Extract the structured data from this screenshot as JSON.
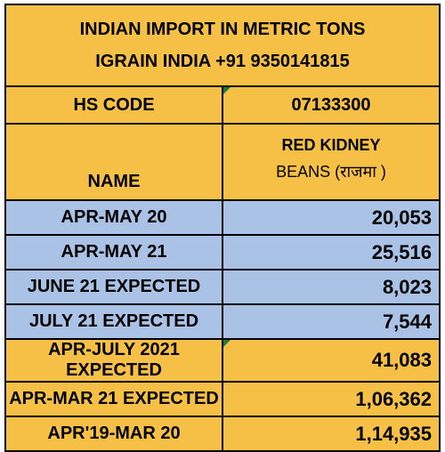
{
  "header": {
    "title": "INDIAN IMPORT IN METRIC TONS",
    "subtitle": "IGRAIN INDIA +91 9350141815"
  },
  "hs_code": {
    "label": "HS CODE",
    "value": "07133300"
  },
  "name_row": {
    "label": "NAME",
    "product_line1": "RED KIDNEY",
    "product_line2": "BEANS  (राजमा )"
  },
  "rows": [
    {
      "label": "APR-MAY 20",
      "value": "20,053",
      "color": "#a9c2e6"
    },
    {
      "label": "APR-MAY 21",
      "value": "25,516",
      "color": "#a9c2e6"
    },
    {
      "label": "JUNE 21 EXPECTED",
      "value": "8,023",
      "color": "#a9c2e6"
    },
    {
      "label": "JULY 21 EXPECTED",
      "value": "7,544",
      "color": "#a9c2e6"
    },
    {
      "label": "APR-JULY 2021 EXPECTED",
      "value": "41,083",
      "color": "#f6bf45"
    },
    {
      "label": "APR-MAR 21 EXPECTED",
      "value": "1,06,362",
      "color": "#f6bf45"
    },
    {
      "label": "APR'19-MAR 20",
      "value": "1,14,935",
      "color": "#f6bf45"
    }
  ],
  "colors": {
    "yellow": "#f6bf45",
    "blue": "#a9c2e6",
    "marker": "#1e7b3a"
  }
}
